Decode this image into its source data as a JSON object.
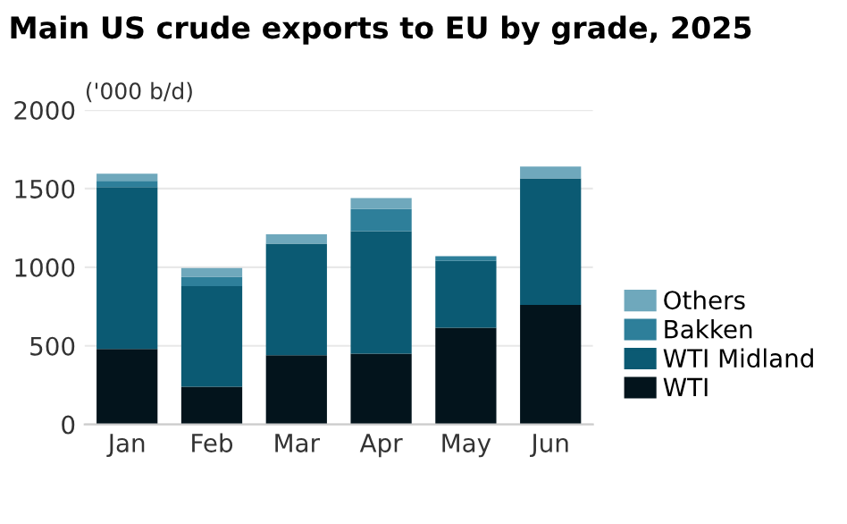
{
  "chart_data": {
    "type": "bar",
    "title": "Main US crude exports to EU by grade, 2025",
    "ylabel": "('000 b/d)",
    "categories": [
      "Jan",
      "Feb",
      "Mar",
      "Apr",
      "May",
      "Jun"
    ],
    "stacked": true,
    "series": [
      {
        "name": "WTI",
        "color": "#03141c",
        "values": [
          480,
          240,
          440,
          450,
          615,
          760
        ]
      },
      {
        "name": "WTI Midland",
        "color": "#0b5a73",
        "values": [
          1030,
          640,
          710,
          780,
          425,
          805
        ]
      },
      {
        "name": "Bakken",
        "color": "#2e7f9a",
        "values": [
          40,
          60,
          0,
          140,
          30,
          0
        ]
      },
      {
        "name": "Others",
        "color": "#6fa8bc",
        "values": [
          45,
          55,
          60,
          70,
          0,
          75
        ]
      }
    ],
    "ylim": [
      0,
      2000
    ],
    "yticks": [
      0,
      500,
      1000,
      1500,
      2000
    ],
    "grid": "y",
    "legend": "right"
  }
}
